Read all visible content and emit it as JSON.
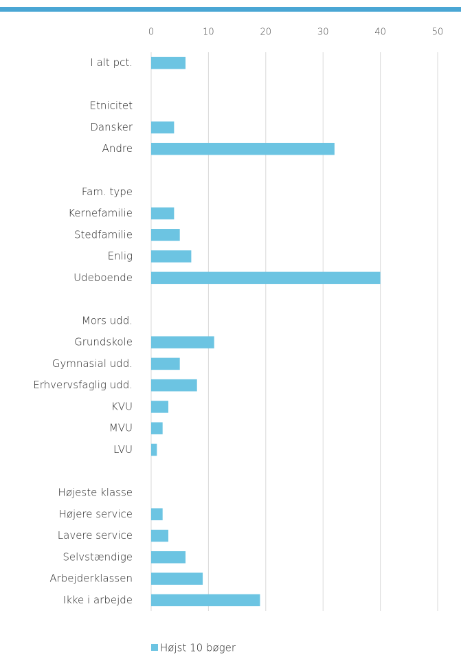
{
  "chart_data": {
    "type": "barh",
    "categories": [
      "I alt pct.",
      null,
      "Etnicitet",
      "Dansker",
      "Andre",
      null,
      "Fam. type",
      "Kernefamilie",
      "Stedfamilie",
      "Enlig",
      "Udeboende",
      null,
      "Mors udd.",
      "Grundskole",
      "Gymnasial udd.",
      "Erhvervsfaglig udd.",
      "KVU",
      "MVU",
      "LVU",
      null,
      "Højeste klasse",
      "Højere service",
      "Lavere service",
      "Selvstændige",
      "Arbejderklassen",
      "Ikke i arbejde"
    ],
    "series": [
      {
        "name": "Højst 10 bøger",
        "color": "#6cc4e2",
        "values": [
          6,
          null,
          null,
          4,
          32,
          null,
          null,
          4,
          5,
          7,
          40,
          null,
          null,
          11,
          5,
          8,
          3,
          2,
          1,
          null,
          null,
          2,
          3,
          6,
          9,
          19
        ]
      }
    ],
    "xlim": [
      0,
      50
    ],
    "xticks": [
      0,
      10,
      20,
      30,
      40,
      50
    ],
    "grid": true,
    "legend": "bottom"
  }
}
